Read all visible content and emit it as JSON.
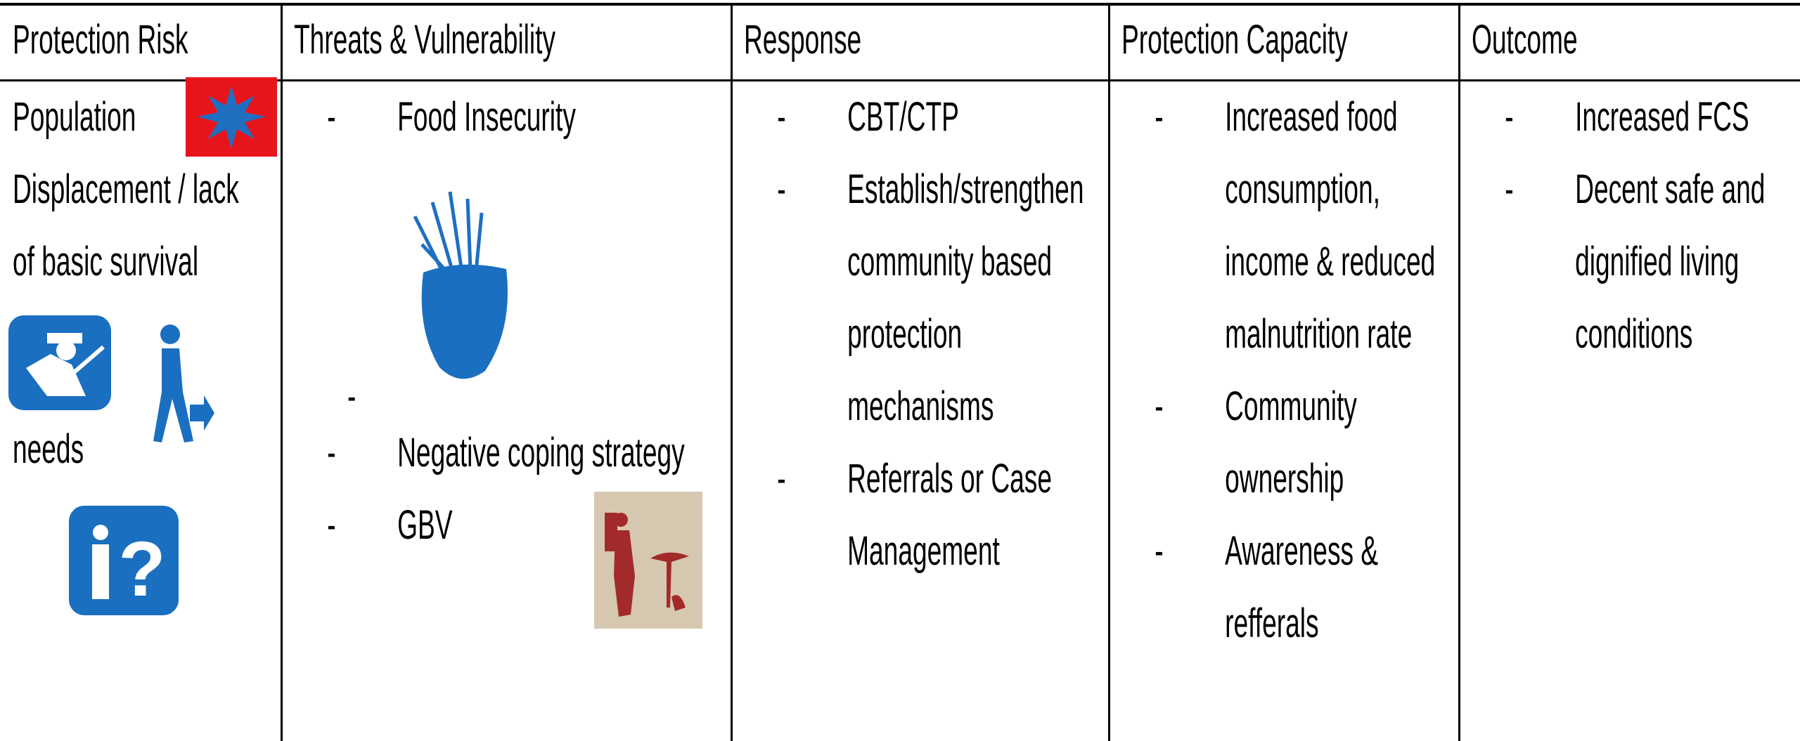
{
  "table": {
    "headers": [
      "Protection Risk",
      "Threats & Vulnerability",
      "Response",
      "Protection Capacity",
      "Outcome"
    ],
    "risk": {
      "text": "Population Displacement / lack of basic survival",
      "continuation": "needs"
    },
    "threats": [
      "Food Insecurity",
      "Negative coping strategy",
      "GBV"
    ],
    "response": [
      "CBT/CTP",
      "Establish/strengthen community based protection mechanisms",
      "Referrals or Case Management"
    ],
    "capacity": [
      "Increased food consumption, income & reduced malnutrition rate",
      "Community ownership",
      "Awareness & refferals"
    ],
    "outcome": [
      "Increased FCS",
      "Decent safe and dignified living conditions"
    ]
  }
}
